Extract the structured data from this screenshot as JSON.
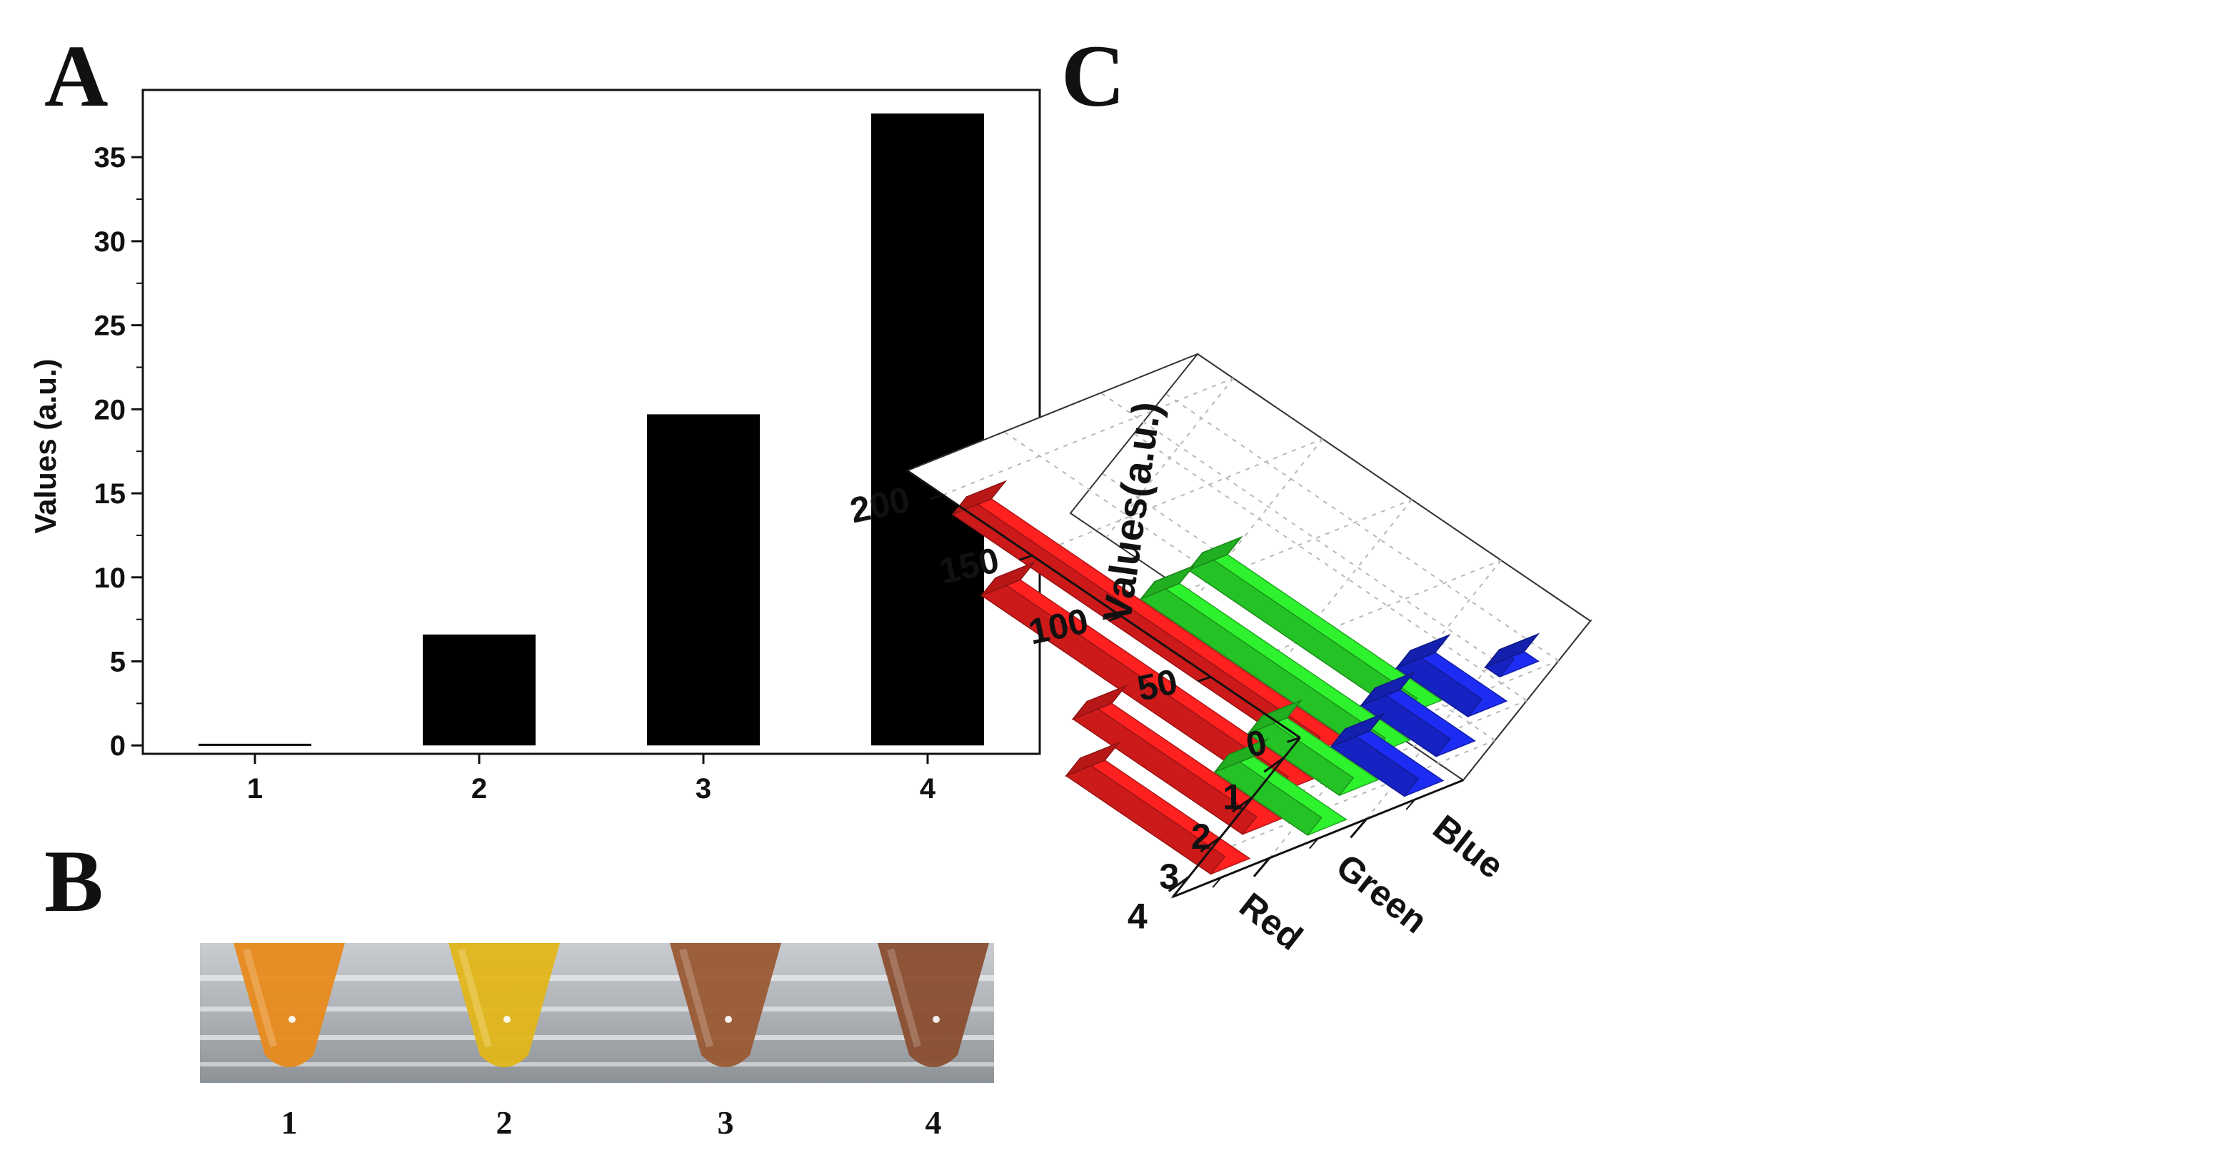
{
  "panels": {
    "a": "A",
    "b": "B",
    "c": "C"
  },
  "colors": {
    "bar_a": "#000000",
    "red": "#ff2020",
    "green": "#2ef22e",
    "blue": "#1c2cf2"
  },
  "photo": {
    "labels": [
      "1",
      "2",
      "3",
      "4"
    ],
    "tube_colors": [
      "#e88a1c",
      "#e2b61a",
      "#9a5a34",
      "#8a4e30"
    ]
  },
  "chart_data": [
    {
      "type": "bar",
      "panel": "A",
      "categories": [
        "1",
        "2",
        "3",
        "4"
      ],
      "values": [
        0.1,
        6.6,
        19.7,
        37.6
      ],
      "ylabel": "Values (a.u.)",
      "ylim": [
        -0.5,
        39
      ],
      "yticks": [
        0,
        5,
        10,
        15,
        20,
        25,
        30,
        35
      ],
      "yticks_text": [
        "0",
        "5",
        "10",
        "15",
        "20",
        "25",
        "30",
        "35"
      ],
      "grid": false
    },
    {
      "type": "bar",
      "panel": "C",
      "categories": [
        "1",
        "2",
        "3",
        "4"
      ],
      "series": [
        {
          "name": "Red",
          "values": [
            198,
            164,
            95,
            81
          ]
        },
        {
          "name": "Green",
          "values": [
            120,
            129,
            51,
            52
          ]
        },
        {
          "name": "Blue",
          "values": [
            8,
            40,
            42,
            41
          ]
        }
      ],
      "ylabel": "Values(a.u.)",
      "zlim": [
        0,
        220
      ],
      "zticks": [
        0,
        50,
        100,
        150,
        200
      ],
      "zticks_text": [
        "0",
        "50",
        "100",
        "150",
        "200"
      ],
      "grid": true
    }
  ]
}
